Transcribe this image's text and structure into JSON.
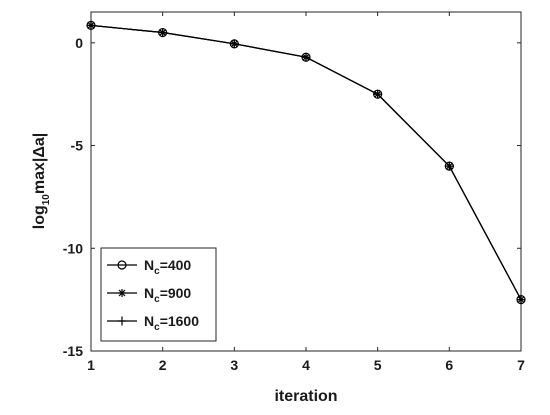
{
  "chart_data": {
    "type": "line",
    "xlabel": "iteration",
    "ylabel": {
      "prefix": "log",
      "subscript": "10",
      "suffix": "max|Δa|"
    },
    "xlim": [
      1,
      7
    ],
    "ylim": [
      -15,
      1.5
    ],
    "xticks": [
      1,
      2,
      3,
      4,
      5,
      6,
      7
    ],
    "yticks": [
      0,
      -5,
      -10,
      -15
    ],
    "grid": false,
    "legend_position": "bottom-left",
    "series": [
      {
        "name": "N_c=400",
        "label_main": "N",
        "label_sub": "c",
        "label_rest": "=400",
        "marker": "circle",
        "color": "#000000",
        "x": [
          1,
          2,
          3,
          4,
          5,
          6,
          7
        ],
        "y": [
          0.85,
          0.5,
          -0.05,
          -0.7,
          -2.5,
          -6.0,
          -12.5
        ]
      },
      {
        "name": "N_c=900",
        "label_main": "N",
        "label_sub": "c",
        "label_rest": "=900",
        "marker": "asterisk",
        "color": "#000000",
        "x": [
          1,
          2,
          3,
          4,
          5,
          6,
          7
        ],
        "y": [
          0.85,
          0.5,
          -0.05,
          -0.7,
          -2.5,
          -6.0,
          -12.5
        ]
      },
      {
        "name": "N_c=1600",
        "label_main": "N",
        "label_sub": "c",
        "label_rest": "=1600",
        "marker": "plus",
        "color": "#000000",
        "x": [
          1,
          2,
          3,
          4,
          5,
          6,
          7
        ],
        "y": [
          0.85,
          0.5,
          -0.05,
          -0.7,
          -2.5,
          -6.0,
          -12.5
        ]
      }
    ]
  }
}
